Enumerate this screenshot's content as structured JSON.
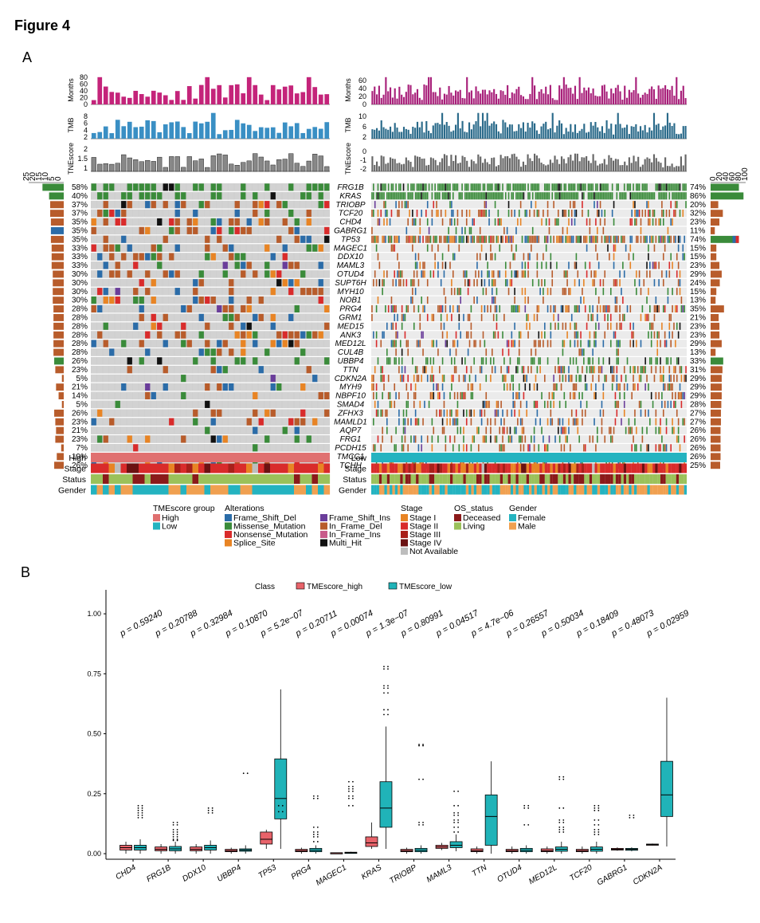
{
  "figure_title": "Figure 4",
  "panel_a_label": "A",
  "panel_b_label": "B",
  "panel_a": {
    "genes": [
      "FRG1B",
      "KRAS",
      "TRIOBP",
      "TCF20",
      "CHD4",
      "GABRG1",
      "TP53",
      "MAGEC1",
      "DDX10",
      "MAML3",
      "OTUD4",
      "SUPT6H",
      "MYH10",
      "NOB1",
      "PRG4",
      "GRM1",
      "MED15",
      "ANK3",
      "MED12L",
      "CUL4B",
      "UBBP4",
      "TTN",
      "CDKN2A",
      "MYH9",
      "NBPF10",
      "SMAD4",
      "ZFHX3",
      "MAMLD1",
      "AQP7",
      "FRG1",
      "PCDH15",
      "TMCC1",
      "TCHH"
    ],
    "left_pct": [
      "58%",
      "40%",
      "37%",
      "37%",
      "35%",
      "35%",
      "35%",
      "33%",
      "33%",
      "33%",
      "30%",
      "30%",
      "30%",
      "30%",
      "28%",
      "28%",
      "28%",
      "28%",
      "28%",
      "28%",
      "26%",
      "23%",
      "5%",
      "21%",
      "14%",
      "5%",
      "26%",
      "23%",
      "21%",
      "23%",
      "7%",
      "19%",
      "26%"
    ],
    "right_pct": [
      "74%",
      "86%",
      "20%",
      "32%",
      "23%",
      "11%",
      "74%",
      "15%",
      "15%",
      "23%",
      "29%",
      "24%",
      "15%",
      "13%",
      "35%",
      "21%",
      "23%",
      "23%",
      "29%",
      "13%",
      "33%",
      "31%",
      "29%",
      "29%",
      "29%",
      "28%",
      "27%",
      "27%",
      "26%",
      "26%",
      "26%",
      "26%",
      "25%"
    ],
    "top_track_labels": [
      "Months",
      "TMB",
      "TNEscore"
    ],
    "left_top_ticks": {
      "months": [
        "80",
        "60",
        "40",
        "20",
        "0"
      ],
      "tmb": [
        "8",
        "6",
        "4",
        "2"
      ],
      "tnescore": [
        "2",
        "1.5",
        "1"
      ]
    },
    "right_top_ticks": {
      "months": [
        "60",
        "40",
        "20",
        "0"
      ],
      "tmb": [
        "10",
        "6",
        "2"
      ],
      "tnescore": [
        "0",
        "-1",
        "-2"
      ]
    },
    "left_axis_ticks": [
      "25",
      "20",
      "15",
      "10",
      "5",
      "0"
    ],
    "right_axis_ticks": [
      "0",
      "20",
      "40",
      "60",
      "80",
      "100"
    ],
    "annotation_rows_left": [
      "High",
      "Stage",
      "Status",
      "Gender"
    ],
    "annotation_rows_right": [
      "Low",
      "Stage",
      "Status",
      "Gender"
    ],
    "legend": {
      "tme_title": "TMEscore group",
      "tme_items": [
        {
          "label": "High",
          "color": "#e07070"
        },
        {
          "label": "Low",
          "color": "#24b3c0"
        }
      ],
      "alt_title": "Alterations",
      "alt_col1": [
        {
          "label": "Frame_Shift_Del",
          "color": "#2b6ca8"
        },
        {
          "label": "Missense_Mutation",
          "color": "#3a8b3a"
        },
        {
          "label": "Nonsense_Mutation",
          "color": "#d92b2b"
        },
        {
          "label": "Splice_Site",
          "color": "#e88424"
        }
      ],
      "alt_col2": [
        {
          "label": "Frame_Shift_Ins",
          "color": "#6a3d9a"
        },
        {
          "label": "In_Frame_Del",
          "color": "#b85c2b"
        },
        {
          "label": "In_Frame_Ins",
          "color": "#c85a8a"
        },
        {
          "label": "Multi_Hit",
          "color": "#111111"
        }
      ],
      "stage_title": "Stage",
      "stage_items": [
        {
          "label": "Stage I",
          "color": "#e88424"
        },
        {
          "label": "Stage II",
          "color": "#d92b2b"
        },
        {
          "label": "Stage III",
          "color": "#a8201a"
        },
        {
          "label": "Stage IV",
          "color": "#6b1212"
        },
        {
          "label": "Not Available",
          "color": "#bdbdbd"
        }
      ],
      "os_title": "OS_status",
      "os_items": [
        {
          "label": "Deceased",
          "color": "#8b1a1a"
        },
        {
          "label": "Living",
          "color": "#9bc15a"
        }
      ],
      "gender_title": "Gender",
      "gender_items": [
        {
          "label": "Female",
          "color": "#24b3c0"
        },
        {
          "label": "Male",
          "color": "#f0a050"
        }
      ]
    }
  },
  "chart_data": {
    "type": "box",
    "legend_title": "Class",
    "series": [
      {
        "name": "TMEscore_high",
        "color": "#e8636a"
      },
      {
        "name": "TMEscore_low",
        "color": "#20b3b8"
      }
    ],
    "categories": [
      "CHD4",
      "FRG1B",
      "DDX10",
      "UBBP4",
      "TP53",
      "PRG4",
      "MAGEC1",
      "KRAS",
      "TRIOBP",
      "MAML3",
      "TTN",
      "OTUD4",
      "MED12L",
      "TCF20",
      "GABRG1",
      "CDKN2A"
    ],
    "p_values": [
      "p = 0.59240",
      "p = 0.20788",
      "p = 0.32984",
      "p = 0.10870",
      "p = 5.2e−07",
      "p = 0.20711",
      "p = 0.00074",
      "p = 1.3e−07",
      "p = 0.80991",
      "p = 0.04517",
      "p = 4.7e−06",
      "p = 0.26557",
      "p = 0.50034",
      "p = 0.18409",
      "p = 0.48073",
      "p = 0.02959"
    ],
    "yticks": [
      "0.00",
      "0.25",
      "0.50",
      "0.75",
      "1.00"
    ],
    "ylim": [
      0,
      1.1
    ],
    "high": [
      {
        "q1": 0.015,
        "med": 0.025,
        "q3": 0.035,
        "lo": 0.0,
        "hi": 0.05
      },
      {
        "q1": 0.012,
        "med": 0.018,
        "q3": 0.028,
        "lo": 0.0,
        "hi": 0.04
      },
      {
        "q1": 0.012,
        "med": 0.018,
        "q3": 0.028,
        "lo": 0.0,
        "hi": 0.04
      },
      {
        "q1": 0.008,
        "med": 0.012,
        "q3": 0.018,
        "lo": 0.0,
        "hi": 0.025
      },
      {
        "q1": 0.04,
        "med": 0.06,
        "q3": 0.09,
        "lo": 0.02,
        "hi": 0.1
      },
      {
        "q1": 0.008,
        "med": 0.012,
        "q3": 0.018,
        "lo": 0.0,
        "hi": 0.025
      },
      {
        "q1": 0.002,
        "med": 0.003,
        "q3": 0.004,
        "lo": 0.0,
        "hi": 0.005
      },
      {
        "q1": 0.03,
        "med": 0.045,
        "q3": 0.07,
        "lo": 0.02,
        "hi": 0.13
      },
      {
        "q1": 0.008,
        "med": 0.012,
        "q3": 0.018,
        "lo": 0.0,
        "hi": 0.025
      },
      {
        "q1": 0.022,
        "med": 0.028,
        "q3": 0.035,
        "lo": 0.015,
        "hi": 0.045
      },
      {
        "q1": 0.008,
        "med": 0.012,
        "q3": 0.02,
        "lo": 0.0,
        "hi": 0.03
      },
      {
        "q1": 0.008,
        "med": 0.012,
        "q3": 0.018,
        "lo": 0.0,
        "hi": 0.03
      },
      {
        "q1": 0.008,
        "med": 0.012,
        "q3": 0.02,
        "lo": 0.0,
        "hi": 0.03
      },
      {
        "q1": 0.008,
        "med": 0.012,
        "q3": 0.018,
        "lo": 0.0,
        "hi": 0.03
      },
      {
        "q1": 0.015,
        "med": 0.018,
        "q3": 0.022,
        "lo": 0.012,
        "hi": 0.026
      },
      {
        "q1": 0.035,
        "med": 0.038,
        "q3": 0.04,
        "lo": 0.034,
        "hi": 0.042
      }
    ],
    "low": [
      {
        "q1": 0.015,
        "med": 0.025,
        "q3": 0.035,
        "lo": 0.0,
        "hi": 0.06
      },
      {
        "q1": 0.012,
        "med": 0.02,
        "q3": 0.03,
        "lo": 0.0,
        "hi": 0.05
      },
      {
        "q1": 0.015,
        "med": 0.025,
        "q3": 0.035,
        "lo": 0.0,
        "hi": 0.055
      },
      {
        "q1": 0.01,
        "med": 0.015,
        "q3": 0.02,
        "lo": 0.0,
        "hi": 0.035
      },
      {
        "q1": 0.145,
        "med": 0.23,
        "q3": 0.395,
        "lo": 0.02,
        "hi": 0.685
      },
      {
        "q1": 0.008,
        "med": 0.014,
        "q3": 0.022,
        "lo": 0.0,
        "hi": 0.035
      },
      {
        "q1": 0.002,
        "med": 0.004,
        "q3": 0.006,
        "lo": 0.0,
        "hi": 0.008
      },
      {
        "q1": 0.11,
        "med": 0.19,
        "q3": 0.3,
        "lo": 0.02,
        "hi": 0.53
      },
      {
        "q1": 0.008,
        "med": 0.014,
        "q3": 0.022,
        "lo": 0.0,
        "hi": 0.035
      },
      {
        "q1": 0.025,
        "med": 0.035,
        "q3": 0.05,
        "lo": 0.01,
        "hi": 0.08
      },
      {
        "q1": 0.035,
        "med": 0.155,
        "q3": 0.245,
        "lo": 0.0,
        "hi": 0.385
      },
      {
        "q1": 0.008,
        "med": 0.014,
        "q3": 0.022,
        "lo": 0.0,
        "hi": 0.035
      },
      {
        "q1": 0.01,
        "med": 0.018,
        "q3": 0.028,
        "lo": 0.0,
        "hi": 0.05
      },
      {
        "q1": 0.01,
        "med": 0.018,
        "q3": 0.028,
        "lo": 0.0,
        "hi": 0.05
      },
      {
        "q1": 0.014,
        "med": 0.018,
        "q3": 0.022,
        "lo": 0.01,
        "hi": 0.026
      },
      {
        "q1": 0.155,
        "med": 0.245,
        "q3": 0.385,
        "lo": 0.03,
        "hi": 0.65
      }
    ],
    "outliers_high": [
      [],
      [],
      [],
      [],
      [],
      [],
      [],
      [],
      [],
      [],
      [],
      [],
      [],
      [],
      [],
      []
    ],
    "outliers_low": [
      [
        0.2,
        0.19,
        0.18,
        0.17,
        0.16,
        0.15
      ],
      [
        0.13,
        0.12,
        0.1,
        0.09,
        0.08,
        0.07,
        0.06,
        0.055
      ],
      [
        0.19,
        0.18,
        0.17
      ],
      [
        0.335
      ],
      [
        0.2,
        0.175
      ],
      [
        0.24,
        0.23,
        0.11,
        0.09,
        0.08,
        0.07,
        0.05
      ],
      [
        0.3,
        0.28,
        0.27,
        0.26,
        0.24,
        0.23,
        0.2
      ],
      [
        0.78,
        0.77,
        0.7,
        0.69,
        0.67,
        0.6,
        0.58
      ],
      [
        0.455,
        0.45,
        0.31,
        0.13,
        0.12
      ],
      [
        0.26,
        0.2,
        0.17,
        0.16,
        0.14,
        0.13,
        0.11,
        0.09
      ],
      [],
      [
        0.2,
        0.19,
        0.12
      ],
      [
        0.32,
        0.31,
        0.19,
        0.14,
        0.13,
        0.11,
        0.1,
        0.09
      ],
      [
        0.2,
        0.19,
        0.18,
        0.14,
        0.12,
        0.1,
        0.09,
        0.08
      ],
      [
        0.16,
        0.15
      ],
      []
    ]
  }
}
